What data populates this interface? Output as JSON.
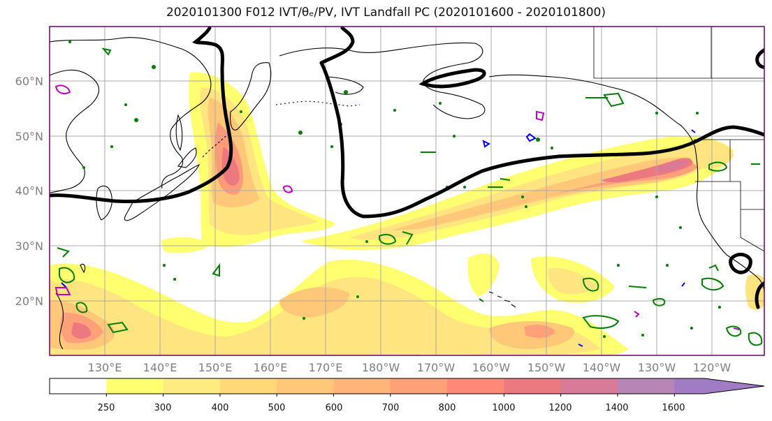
{
  "title": "2020101300 F012 IVT/θₑ/PV, IVT Landfall PC (2020101600 - 2020101800)",
  "map": {
    "lat_labels": [
      "60°N",
      "50°N",
      "40°N",
      "30°N",
      "20°N"
    ],
    "lon_labels": [
      "130°E",
      "140°E",
      "150°E",
      "160°E",
      "170°E",
      "180°W",
      "170°W",
      "160°W",
      "150°W",
      "140°W",
      "130°W",
      "120°W"
    ],
    "colors": {
      "theta_e_contour": "#000000",
      "pv_contour_green": "#007f00",
      "pv_contour_blue": "#0000ff",
      "pv_contour_magenta": "#bf00bf",
      "frame": "#6a006a"
    }
  },
  "colorbar": {
    "tick_labels": [
      "250",
      "300",
      "400",
      "500",
      "600",
      "700",
      "800",
      "1000",
      "1200",
      "1400",
      "1600"
    ],
    "colors": [
      "#ffffff",
      "#ffff70",
      "#ffec80",
      "#ffd878",
      "#ffc878",
      "#ffb47a",
      "#ffa078",
      "#ff8878",
      "#ec7880",
      "#d87a98",
      "#b886b6",
      "#a07cc4"
    ]
  }
}
